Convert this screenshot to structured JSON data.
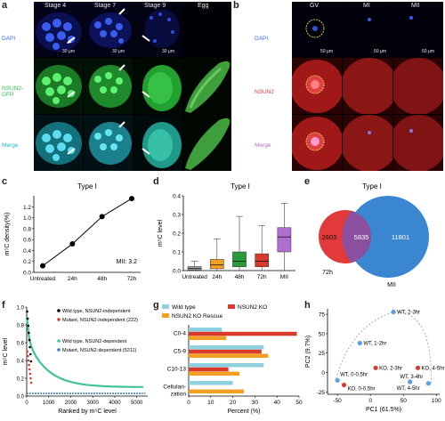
{
  "panel_a": {
    "letter": "a",
    "columns": [
      "Stage 4",
      "Stage 7",
      "Stage 9",
      "Egg"
    ],
    "rows": [
      {
        "label": "DAPI",
        "color": "#3b6df5"
      },
      {
        "label": "NSUN2-\nGFP",
        "color": "#3fe35a"
      },
      {
        "label": "Merge",
        "color": "#39dbe0"
      }
    ],
    "scale_bar": "30 μm"
  },
  "panel_b": {
    "letter": "b",
    "columns": [
      "GV",
      "MI",
      "MII"
    ],
    "rows": [
      {
        "label": "DAPI",
        "color": "#3b6df5"
      },
      {
        "label": "NSUN2",
        "color": "#e0403f"
      },
      {
        "label": "Merge",
        "color": "#b06fd0"
      }
    ],
    "scale_bar": "50 μm"
  },
  "panel_c": {
    "letter": "c",
    "annotation": "MII: 3.2"
  },
  "panel_d": {
    "letter": "d"
  },
  "panel_e": {
    "letter": "e"
  },
  "panel_f": {
    "letter": "f"
  },
  "panel_g": {
    "letter": "g"
  },
  "panel_h": {
    "letter": "h"
  },
  "chart_data": [
    {
      "id": "c",
      "type": "line",
      "title": "Type I",
      "xlabel": "",
      "ylabel": "m⁵C density(%)",
      "categories": [
        "Untreated",
        "24h",
        "48h",
        "72h"
      ],
      "values": [
        0.12,
        0.52,
        1.02,
        1.35
      ],
      "ylim": [
        0,
        1.4
      ],
      "yticks": [
        "0.0",
        "0.2",
        "0.4",
        "0.6",
        "0.8",
        "1.0",
        "1.2"
      ],
      "color": "#000000"
    },
    {
      "id": "d",
      "type": "box",
      "title": "Type I",
      "ylabel": "m⁵C level",
      "categories": [
        "Untreated",
        "24h",
        "48h",
        "72h",
        "MII"
      ],
      "colors": [
        "#a9a9a9",
        "#f2a024",
        "#2b9a3b",
        "#d93a2e",
        "#b06fd0"
      ],
      "boxes": [
        {
          "whisker_low": 0.0,
          "q1": 0.004,
          "median": 0.012,
          "q3": 0.022,
          "whisker_high": 0.05
        },
        {
          "whisker_low": 0.0,
          "q1": 0.01,
          "median": 0.03,
          "q3": 0.06,
          "whisker_high": 0.17
        },
        {
          "whisker_low": 0.0,
          "q1": 0.02,
          "median": 0.05,
          "q3": 0.1,
          "whisker_high": 0.29
        },
        {
          "whisker_low": 0.0,
          "q1": 0.02,
          "median": 0.05,
          "q3": 0.09,
          "whisker_high": 0.24
        },
        {
          "whisker_low": 0.0,
          "q1": 0.1,
          "median": 0.18,
          "q3": 0.23,
          "whisker_high": 0.36
        }
      ],
      "ylim": [
        0,
        0.4
      ],
      "yticks": [
        "0.0",
        "0.1",
        "0.2",
        "0.3",
        "0.4"
      ]
    },
    {
      "id": "e",
      "type": "venn",
      "title": "Type I",
      "sets": [
        {
          "name": "72h",
          "only": "2603",
          "color": "#e23a3a"
        },
        {
          "name": "MII",
          "only": "11801",
          "color": "#3a86d0"
        }
      ],
      "overlap": "5835",
      "overlap_color": "#8b4fa0"
    },
    {
      "id": "f",
      "type": "scatter",
      "ylabel": "m⁵C level",
      "xlabel": "Ranked by m⁵C level",
      "xlim": [
        0,
        5500
      ],
      "ylim": [
        0,
        1.0
      ],
      "xticks": [
        "0",
        "1000",
        "2000",
        "3000",
        "4000",
        "5000"
      ],
      "yticks": [
        "0.0",
        "0.2",
        "0.4",
        "0.6",
        "0.8",
        "1.0"
      ],
      "legend": [
        "Wild type, NSUN2-independent",
        "Mutant, NSUN2-independent (222)",
        "Wild type, NSUN2-dependent",
        "Mutant, NSUN2-dependent (5211)"
      ],
      "legend_colors": [
        "#000000",
        "#d93a2e",
        "#3ec49a",
        "#3a7fc1"
      ]
    },
    {
      "id": "g",
      "type": "bar",
      "orientation": "horizontal",
      "xlabel": "Percent (%)",
      "categories": [
        "C0-4",
        "C5-9",
        "C10-13",
        "Cellularization"
      ],
      "category_labels": [
        "C0-4",
        "C5-9",
        "C10-13",
        "Cellulari-"
      ],
      "category_labels_2": [
        "",
        "",
        "",
        "zation"
      ],
      "series": [
        {
          "name": "Wild type",
          "values": [
            15,
            34,
            34,
            20
          ],
          "color": "#8fd0e0"
        },
        {
          "name": "NSUN2 KO",
          "values": [
            49,
            33,
            18,
            0
          ],
          "color": "#d93a2e"
        },
        {
          "name": "NSUN2 KO Rescue",
          "values": [
            17,
            36,
            23,
            25
          ],
          "color": "#f2a024"
        }
      ],
      "xlim": [
        0,
        50
      ],
      "xticks": [
        "0",
        "10",
        "20",
        "30",
        "40",
        "50"
      ]
    },
    {
      "id": "h",
      "type": "scatter",
      "xlabel": "PC1 (61.5%)",
      "ylabel": "PC2 (9.7%)",
      "xlim": [
        -65,
        105
      ],
      "ylim": [
        -28,
        82
      ],
      "xticks": [
        "-50",
        "0",
        "50",
        "100"
      ],
      "yticks": [
        "-25",
        "0",
        "25",
        "50",
        "75"
      ],
      "points": [
        {
          "label": "WT, 2-3hr",
          "x": 35,
          "y": 78,
          "color": "#5aa0e0"
        },
        {
          "label": "WT, 1-2hr",
          "x": -16,
          "y": 38,
          "color": "#5aa0e0"
        },
        {
          "label": "WT, 0-0.5hr",
          "x": -50,
          "y": -10,
          "color": "#5aa0e0"
        },
        {
          "label": "KO, 0-0.5hr",
          "x": -40,
          "y": -16,
          "color": "#d93a2e"
        },
        {
          "label": "KO, 2-3hr",
          "x": 8,
          "y": 6,
          "color": "#d93a2e"
        },
        {
          "label": "KO, 4-5hr",
          "x": 72,
          "y": 6,
          "color": "#d93a2e"
        },
        {
          "label": "WT, 4-5hr",
          "x": 60,
          "y": -12,
          "color": "#5aa0e0"
        },
        {
          "label": "WT, 3-4hr",
          "x": 88,
          "y": -14,
          "color": "#5aa0e0"
        }
      ]
    }
  ]
}
